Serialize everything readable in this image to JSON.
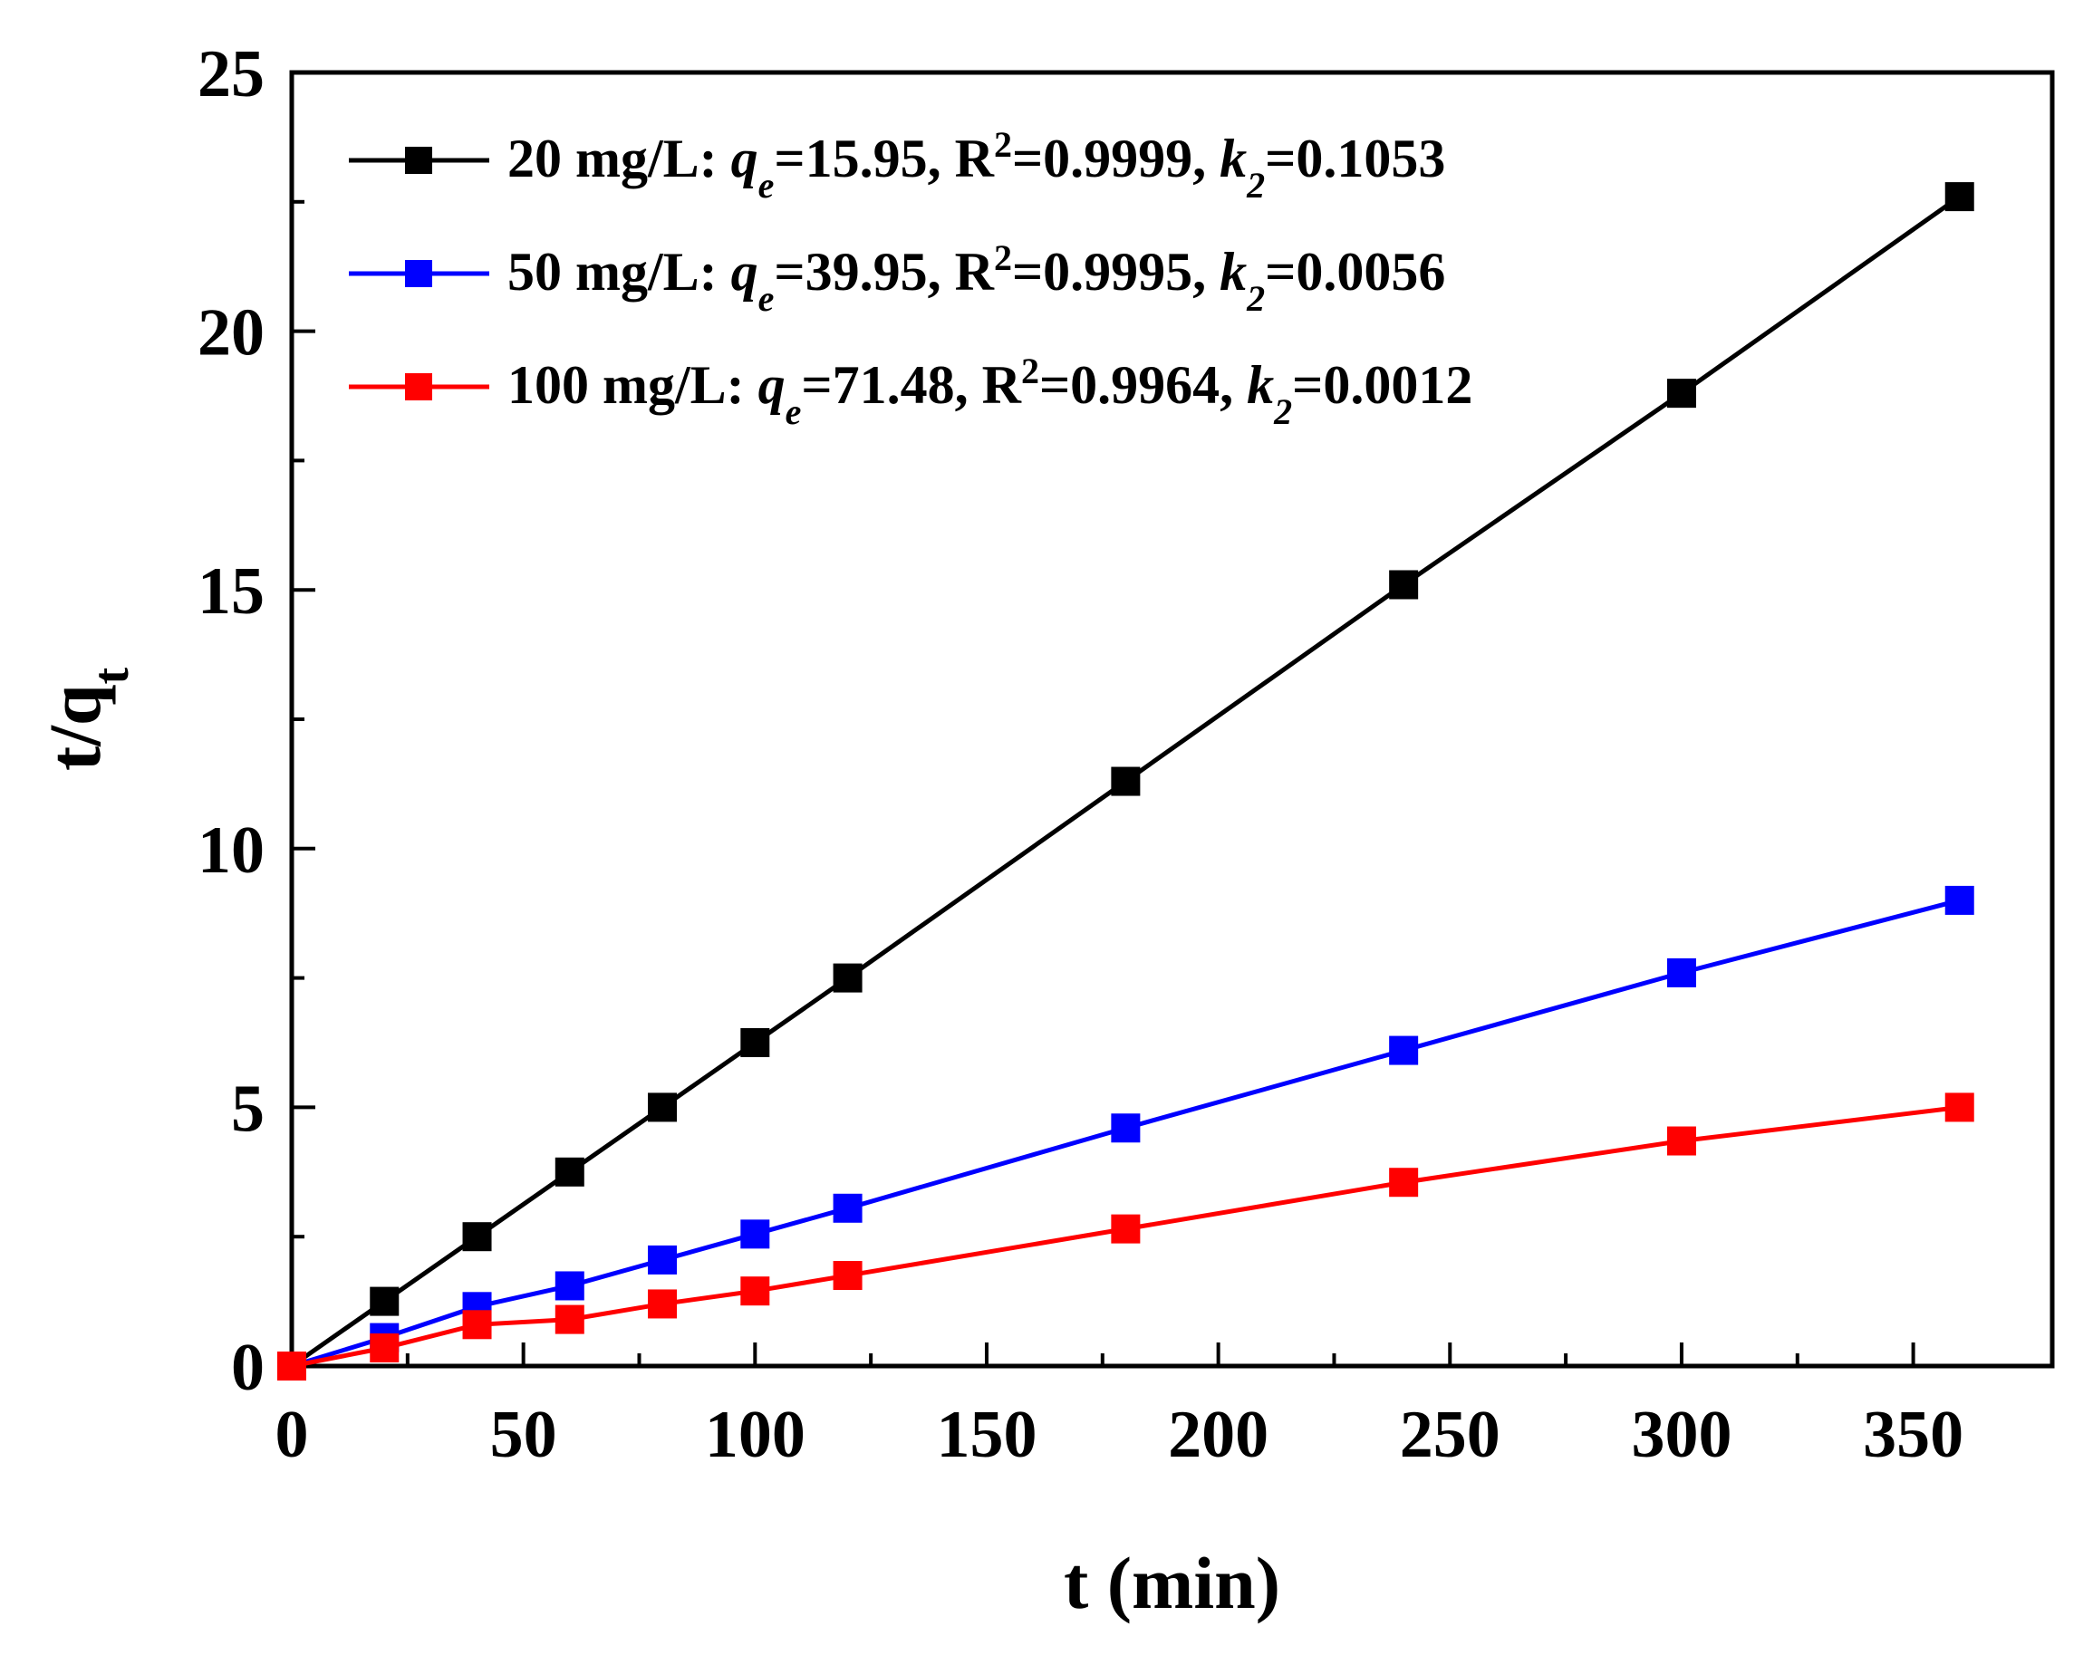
{
  "chart_data": {
    "type": "line",
    "title": "",
    "xlabel": "t (min)",
    "ylabel_main": "t/q",
    "ylabel_sub": "t",
    "xlim": [
      0,
      380
    ],
    "ylim": [
      0,
      25
    ],
    "xticks": [
      0,
      50,
      100,
      150,
      200,
      250,
      300,
      350
    ],
    "yticks": [
      0,
      5,
      10,
      15,
      20,
      25
    ],
    "grid": false,
    "legend_position": "top-left",
    "series": [
      {
        "name": "20 mg/L",
        "color": "#000000",
        "legend": {
          "prefix": "20 mg/L: ",
          "qe": "=15.95, R",
          "r2": "=0.9999, ",
          "k2": "=0.1053"
        },
        "x": [
          0,
          20,
          40,
          60,
          80,
          100,
          120,
          180,
          240,
          300,
          360
        ],
        "y": [
          0,
          1.25,
          2.5,
          3.75,
          5.0,
          6.25,
          7.5,
          11.3,
          15.1,
          18.8,
          22.6
        ]
      },
      {
        "name": "50 mg/L",
        "color": "#0000ff",
        "legend": {
          "prefix": "50 mg/L: ",
          "qe": "=39.95, R",
          "r2": "=0.9995, ",
          "k2": "=0.0056"
        },
        "x": [
          0,
          20,
          40,
          60,
          80,
          100,
          120,
          180,
          240,
          300,
          360
        ],
        "y": [
          0,
          0.55,
          1.15,
          1.55,
          2.05,
          2.55,
          3.05,
          4.6,
          6.1,
          7.6,
          9.0
        ]
      },
      {
        "name": "100 mg/L",
        "color": "#ff0000",
        "legend": {
          "prefix": "100 mg/L: ",
          "qe": "=71.48, R",
          "r2": "=0.9964, ",
          "k2": "=0.0012"
        },
        "x": [
          0,
          20,
          40,
          60,
          80,
          100,
          120,
          180,
          240,
          300,
          360
        ],
        "y": [
          0,
          0.35,
          0.8,
          0.9,
          1.2,
          1.45,
          1.75,
          2.65,
          3.55,
          4.35,
          5.0
        ]
      }
    ],
    "legend_symbols": {
      "q": "q",
      "e": "e",
      "sup2": "2",
      "k": "k",
      "two": "2"
    }
  }
}
